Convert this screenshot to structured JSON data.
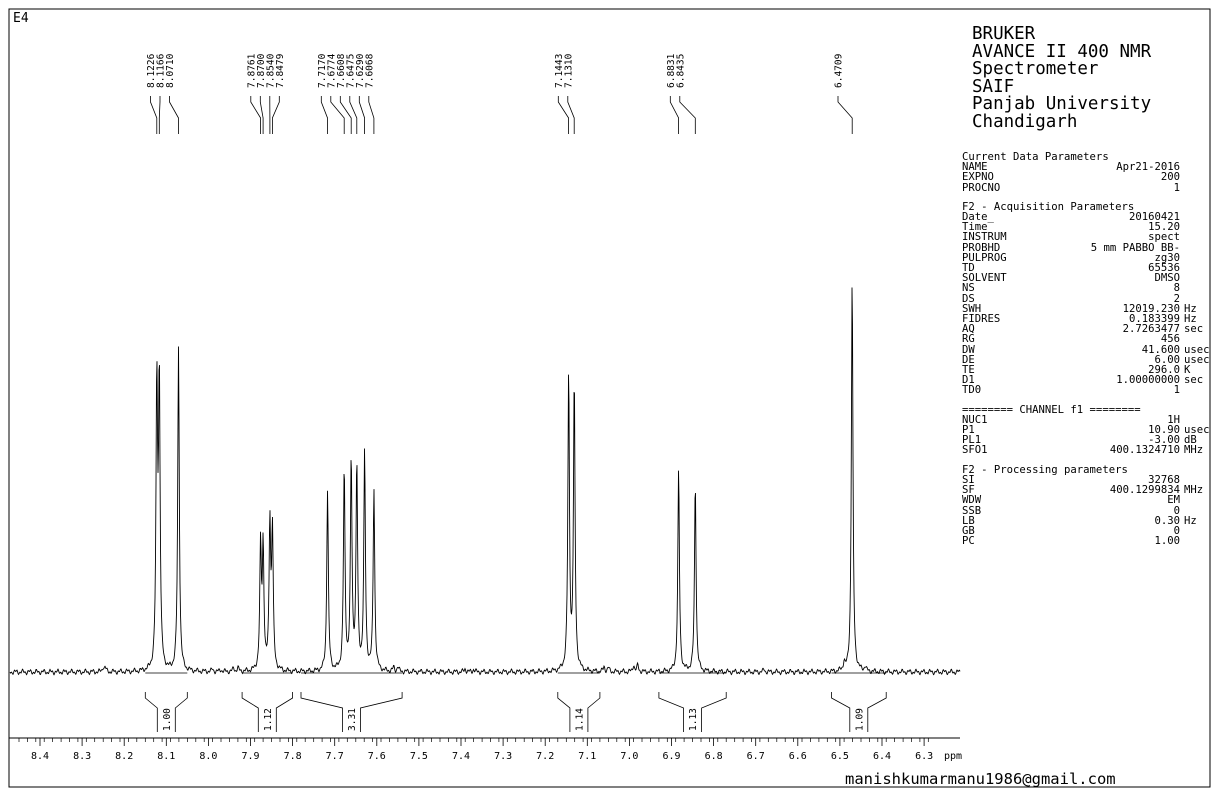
{
  "dataset_label": "E4",
  "lab": {
    "lines": [
      "BRUKER",
      "AVANCE II 400 NMR",
      "Spectrometer",
      "SAIF",
      "Panjab University",
      "Chandigarh"
    ]
  },
  "parameters": {
    "sections": [
      {
        "title": "Current Data Parameters",
        "rows": [
          {
            "key": "NAME",
            "value": "Apr21-2016",
            "unit": ""
          },
          {
            "key": "EXPNO",
            "value": "200",
            "unit": ""
          },
          {
            "key": "PROCNO",
            "value": "1",
            "unit": ""
          }
        ]
      },
      {
        "title": "F2 - Acquisition Parameters",
        "rows": [
          {
            "key": "Date_",
            "value": "20160421",
            "unit": ""
          },
          {
            "key": "Time",
            "value": "15.20",
            "unit": ""
          },
          {
            "key": "INSTRUM",
            "value": "spect",
            "unit": ""
          },
          {
            "key": "PROBHD",
            "value": "5 mm PABBO BB-",
            "unit": ""
          },
          {
            "key": "PULPROG",
            "value": "zg30",
            "unit": ""
          },
          {
            "key": "TD",
            "value": "65536",
            "unit": ""
          },
          {
            "key": "SOLVENT",
            "value": "DMSO",
            "unit": ""
          },
          {
            "key": "NS",
            "value": "8",
            "unit": ""
          },
          {
            "key": "DS",
            "value": "2",
            "unit": ""
          },
          {
            "key": "SWH",
            "value": "12019.230",
            "unit": "Hz"
          },
          {
            "key": "FIDRES",
            "value": "0.183399",
            "unit": "Hz"
          },
          {
            "key": "AQ",
            "value": "2.7263477",
            "unit": "sec"
          },
          {
            "key": "RG",
            "value": "456",
            "unit": ""
          },
          {
            "key": "DW",
            "value": "41.600",
            "unit": "usec"
          },
          {
            "key": "DE",
            "value": "6.00",
            "unit": "usec"
          },
          {
            "key": "TE",
            "value": "296.0",
            "unit": "K"
          },
          {
            "key": "D1",
            "value": "1.00000000",
            "unit": "sec"
          },
          {
            "key": "TD0",
            "value": "1",
            "unit": ""
          }
        ]
      },
      {
        "title": "======== CHANNEL f1 ========",
        "rows": [
          {
            "key": "NUC1",
            "value": "1H",
            "unit": ""
          },
          {
            "key": "P1",
            "value": "10.90",
            "unit": "usec"
          },
          {
            "key": "PL1",
            "value": "-3.00",
            "unit": "dB"
          },
          {
            "key": "SFO1",
            "value": "400.1324710",
            "unit": "MHz"
          }
        ]
      },
      {
        "title": "F2 - Processing parameters",
        "rows": [
          {
            "key": "SI",
            "value": "32768",
            "unit": ""
          },
          {
            "key": "SF",
            "value": "400.1299834",
            "unit": "MHz"
          },
          {
            "key": "WDW",
            "value": "EM",
            "unit": ""
          },
          {
            "key": "SSB",
            "value": "0",
            "unit": ""
          },
          {
            "key": "LB",
            "value": "0.30",
            "unit": "Hz"
          },
          {
            "key": "GB",
            "value": "0",
            "unit": ""
          },
          {
            "key": "PC",
            "value": "1.00",
            "unit": ""
          }
        ]
      }
    ]
  },
  "email": "manishkumarmanu1986@gmail.com",
  "chart_data": {
    "type": "line",
    "xlabel": "ppm",
    "xlim": [
      8.45,
      6.15
    ],
    "x_reversed": true,
    "x_ticks": [
      "8.4",
      "8.3",
      "8.2",
      "8.1",
      "8.0",
      "7.9",
      "7.8",
      "7.7",
      "7.6",
      "7.5",
      "7.4",
      "7.3",
      "7.2",
      "7.1",
      "7.0",
      "6.9",
      "6.8",
      "6.7",
      "6.6",
      "6.5",
      "6.4",
      "6.3"
    ],
    "peaks": [
      {
        "label": "8.1226",
        "ppm": 8.1226,
        "height": 0.72
      },
      {
        "label": "8.1166",
        "ppm": 8.1166,
        "height": 0.73
      },
      {
        "label": "8.0710",
        "ppm": 8.071,
        "height": 0.82
      },
      {
        "label": "7.8761",
        "ppm": 7.8761,
        "height": 0.31
      },
      {
        "label": "7.8700",
        "ppm": 7.87,
        "height": 0.31
      },
      {
        "label": "7.8540",
        "ppm": 7.854,
        "height": 0.37
      },
      {
        "label": "7.8479",
        "ppm": 7.8479,
        "height": 0.35
      },
      {
        "label": "7.7170",
        "ppm": 7.717,
        "height": 0.46
      },
      {
        "label": "7.6774",
        "ppm": 7.6774,
        "height": 0.51
      },
      {
        "label": "7.6608",
        "ppm": 7.6608,
        "height": 0.53
      },
      {
        "label": "7.6475",
        "ppm": 7.6475,
        "height": 0.52
      },
      {
        "label": "7.6290",
        "ppm": 7.629,
        "height": 0.55
      },
      {
        "label": "7.6068",
        "ppm": 7.6068,
        "height": 0.46
      },
      {
        "label": "7.1443",
        "ppm": 7.1443,
        "height": 0.75
      },
      {
        "label": "7.1310",
        "ppm": 7.131,
        "height": 0.73
      },
      {
        "label": "6.8831",
        "ppm": 6.8831,
        "height": 0.51
      },
      {
        "label": "6.8435",
        "ppm": 6.8435,
        "height": 0.48
      },
      {
        "label": "6.4709",
        "ppm": 6.4709,
        "height": 1.0
      }
    ],
    "integrals": [
      {
        "label": "1.00",
        "from": 8.15,
        "to": 8.05
      },
      {
        "label": "1.12",
        "from": 7.92,
        "to": 7.8
      },
      {
        "label": "3.31",
        "from": 7.78,
        "to": 7.54
      },
      {
        "label": "1.14",
        "from": 7.17,
        "to": 7.07
      },
      {
        "label": "1.13",
        "from": 6.93,
        "to": 6.77
      },
      {
        "label": "1.09",
        "from": 6.52,
        "to": 6.39
      }
    ]
  }
}
